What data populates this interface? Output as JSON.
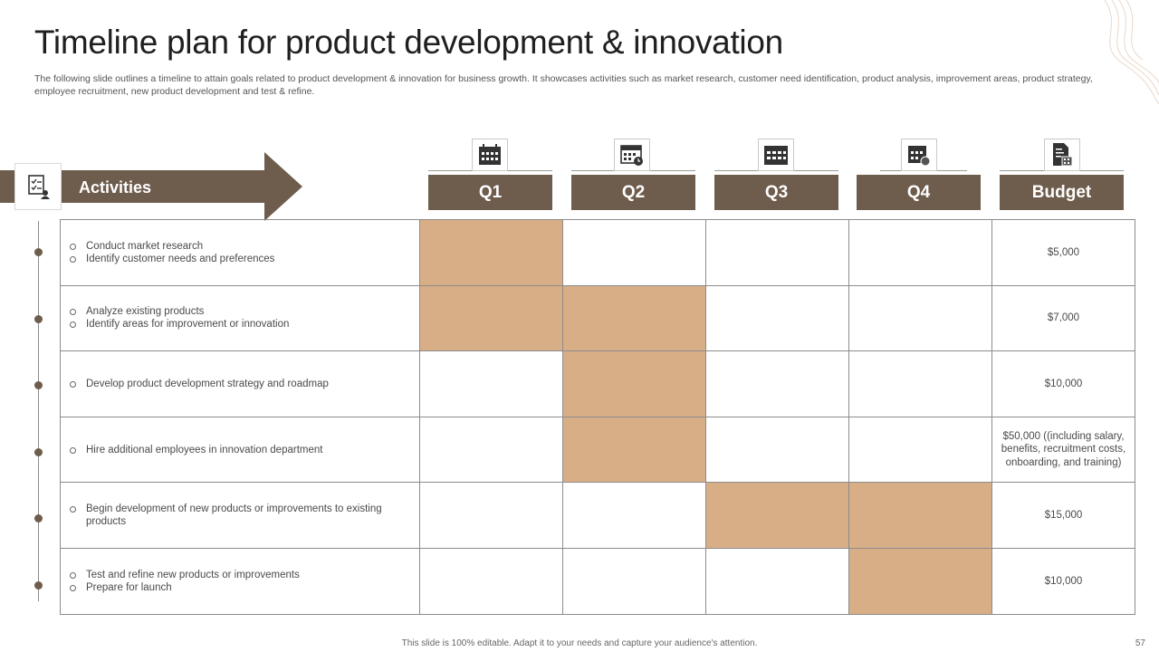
{
  "slide": {
    "title": "Timeline plan for product development & innovation",
    "subtitle": "The following slide outlines a timeline to attain goals related to product development & innovation for  business growth. It showcases activities such as market research, customer need identification, product analysis, improvement areas, product strategy, employee recruitment, new product development and test & refine.",
    "activities_label": "Activities",
    "headers": [
      "Q1",
      "Q2",
      "Q3",
      "Q4",
      "Budget"
    ],
    "header_icons": [
      "calendar-icon",
      "calendar-clock-icon",
      "calendar-icon",
      "calendar-alert-icon",
      "budget-document-icon"
    ],
    "rows": [
      {
        "items": [
          "Conduct market research",
          "Identify customer needs and preferences"
        ],
        "budget": "$5,000",
        "quarters": [
          true,
          false,
          false,
          false
        ]
      },
      {
        "items": [
          "Analyze  existing products",
          "Identify areas for improvement or innovation"
        ],
        "budget": "$7,000",
        "quarters": [
          true,
          true,
          false,
          false
        ]
      },
      {
        "items": [
          "Develop product development strategy and roadmap"
        ],
        "budget": "$10,000",
        "quarters": [
          false,
          true,
          false,
          false
        ]
      },
      {
        "items": [
          "Hire additional employees in innovation department"
        ],
        "budget": "$50,000 ((including salary, benefits, recruitment costs, onboarding, and training)",
        "quarters": [
          false,
          true,
          false,
          false
        ]
      },
      {
        "items": [
          "Begin development of new products or improvements to existing products"
        ],
        "budget": "$15,000",
        "quarters": [
          false,
          false,
          true,
          true
        ]
      },
      {
        "items": [
          "Test and refine new products or improvements",
          "Prepare for launch"
        ],
        "budget": "$10,000",
        "quarters": [
          false,
          false,
          false,
          true
        ]
      }
    ],
    "footer": "This slide is 100% editable. Adapt it to your needs and capture your audience's attention.",
    "page_number": "57"
  },
  "colors": {
    "brown": "#6e5c4c",
    "tan": "#d8ae86"
  }
}
